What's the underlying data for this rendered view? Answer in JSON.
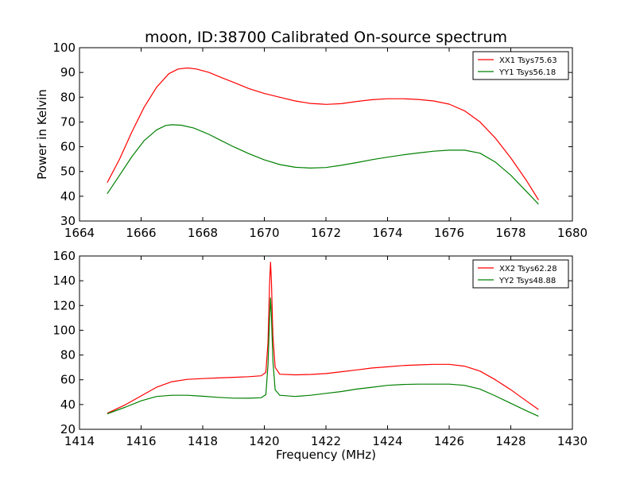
{
  "figure": {
    "title": "moon, ID:38700 Calibrated On-source spectrum"
  },
  "chart_data": [
    {
      "type": "line",
      "title": "moon, ID:38700 Calibrated On-source spectrum",
      "xlabel": "",
      "ylabel": "Power in Kelvin",
      "xlim": [
        1664,
        1680
      ],
      "ylim": [
        30,
        100
      ],
      "xticks": [
        "1664",
        "1666",
        "1668",
        "1670",
        "1672",
        "1674",
        "1676",
        "1678",
        "1680"
      ],
      "yticks": [
        "30",
        "40",
        "50",
        "60",
        "70",
        "80",
        "90",
        "100"
      ],
      "legend_position": "top-right",
      "grid": false,
      "series": [
        {
          "name": "XX1 Tsys75.63",
          "color": "#ff0000",
          "x": [
            1664.9,
            1665.3,
            1665.7,
            1666.1,
            1666.5,
            1666.9,
            1667.2,
            1667.5,
            1667.8,
            1668.2,
            1668.6,
            1669.0,
            1669.5,
            1670.0,
            1670.5,
            1671.0,
            1671.5,
            1671.9,
            1672.0,
            1672.5,
            1673.0,
            1673.5,
            1674.0,
            1674.5,
            1675.0,
            1675.5,
            1676.0,
            1676.5,
            1677.0,
            1677.5,
            1678.0,
            1678.5,
            1678.9
          ],
          "y": [
            45.5,
            55,
            66,
            76,
            84,
            89.5,
            91.4,
            91.8,
            91.4,
            90,
            88,
            86,
            83.5,
            81.5,
            80,
            78.5,
            77.5,
            77.2,
            77.1,
            77.4,
            78.3,
            79,
            79.4,
            79.4,
            79.1,
            78.5,
            77.2,
            74.5,
            70,
            63.5,
            55.5,
            46.5,
            38.5
          ]
        },
        {
          "name": "YY1 Tsys56.18",
          "color": "#008000",
          "x": [
            1664.9,
            1665.3,
            1665.7,
            1666.1,
            1666.5,
            1666.8,
            1667.0,
            1667.3,
            1667.7,
            1668.2,
            1668.6,
            1669.0,
            1669.5,
            1670.0,
            1670.5,
            1671.0,
            1671.5,
            1672.0,
            1672.5,
            1673.0,
            1673.5,
            1674.0,
            1674.5,
            1675.0,
            1675.5,
            1676.0,
            1676.5,
            1677.0,
            1677.5,
            1678.0,
            1678.5,
            1678.9
          ],
          "y": [
            41,
            48.5,
            56,
            62.5,
            66.8,
            68.6,
            68.9,
            68.7,
            67.6,
            65,
            62.5,
            60,
            57.2,
            54.7,
            52.8,
            51.7,
            51.4,
            51.6,
            52.5,
            53.6,
            54.8,
            55.8,
            56.7,
            57.5,
            58.2,
            58.6,
            58.6,
            57.4,
            53.8,
            48.5,
            42,
            36.8
          ]
        }
      ]
    },
    {
      "type": "line",
      "title": "",
      "xlabel": "Frequency (MHz)",
      "ylabel": "",
      "xlim": [
        1414,
        1430
      ],
      "ylim": [
        20,
        160
      ],
      "xticks": [
        "1414",
        "1416",
        "1418",
        "1420",
        "1422",
        "1424",
        "1426",
        "1428",
        "1430"
      ],
      "yticks": [
        "20",
        "40",
        "60",
        "80",
        "100",
        "120",
        "140",
        "160"
      ],
      "legend_position": "top-right",
      "grid": false,
      "series": [
        {
          "name": "XX2 Tsys62.28",
          "color": "#ff0000",
          "x": [
            1414.9,
            1415.5,
            1416.0,
            1416.5,
            1417.0,
            1417.5,
            1418.0,
            1418.5,
            1419.0,
            1419.5,
            1419.9,
            1420.05,
            1420.12,
            1420.17,
            1420.2,
            1420.23,
            1420.28,
            1420.35,
            1420.5,
            1421.0,
            1421.5,
            1422.0,
            1422.5,
            1423.0,
            1423.5,
            1424.0,
            1424.5,
            1425.0,
            1425.5,
            1426.0,
            1426.5,
            1427.0,
            1427.5,
            1428.0,
            1428.5,
            1428.9
          ],
          "y": [
            33,
            40,
            47,
            54,
            58.5,
            60.3,
            61,
            61.5,
            62,
            62.5,
            63.2,
            66,
            90,
            138,
            155,
            140,
            95,
            70,
            64.5,
            64,
            64.3,
            65,
            66.5,
            68,
            69.5,
            70.5,
            71.5,
            72,
            72.5,
            72.5,
            71,
            67,
            60,
            52,
            43,
            36
          ]
        },
        {
          "name": "YY2 Tsys48.88",
          "color": "#008000",
          "x": [
            1414.9,
            1415.5,
            1416.0,
            1416.5,
            1417.0,
            1417.5,
            1418.0,
            1418.5,
            1419.0,
            1419.5,
            1419.9,
            1420.05,
            1420.12,
            1420.17,
            1420.2,
            1420.23,
            1420.28,
            1420.35,
            1420.5,
            1421.0,
            1421.5,
            1422.0,
            1422.5,
            1423.0,
            1423.5,
            1424.0,
            1424.5,
            1425.0,
            1425.5,
            1426.0,
            1426.5,
            1427.0,
            1427.5,
            1428.0,
            1428.5,
            1428.9
          ],
          "y": [
            32.5,
            38,
            43,
            46.5,
            47.5,
            47.5,
            46.7,
            45.8,
            45.2,
            45.1,
            45.5,
            48,
            72,
            110,
            126,
            112,
            75,
            52,
            47.5,
            46.5,
            47.5,
            49,
            50.5,
            52.5,
            54,
            55.5,
            56.2,
            56.5,
            56.5,
            56.5,
            55.5,
            52.5,
            47,
            41,
            35,
            30.5
          ]
        }
      ]
    }
  ]
}
